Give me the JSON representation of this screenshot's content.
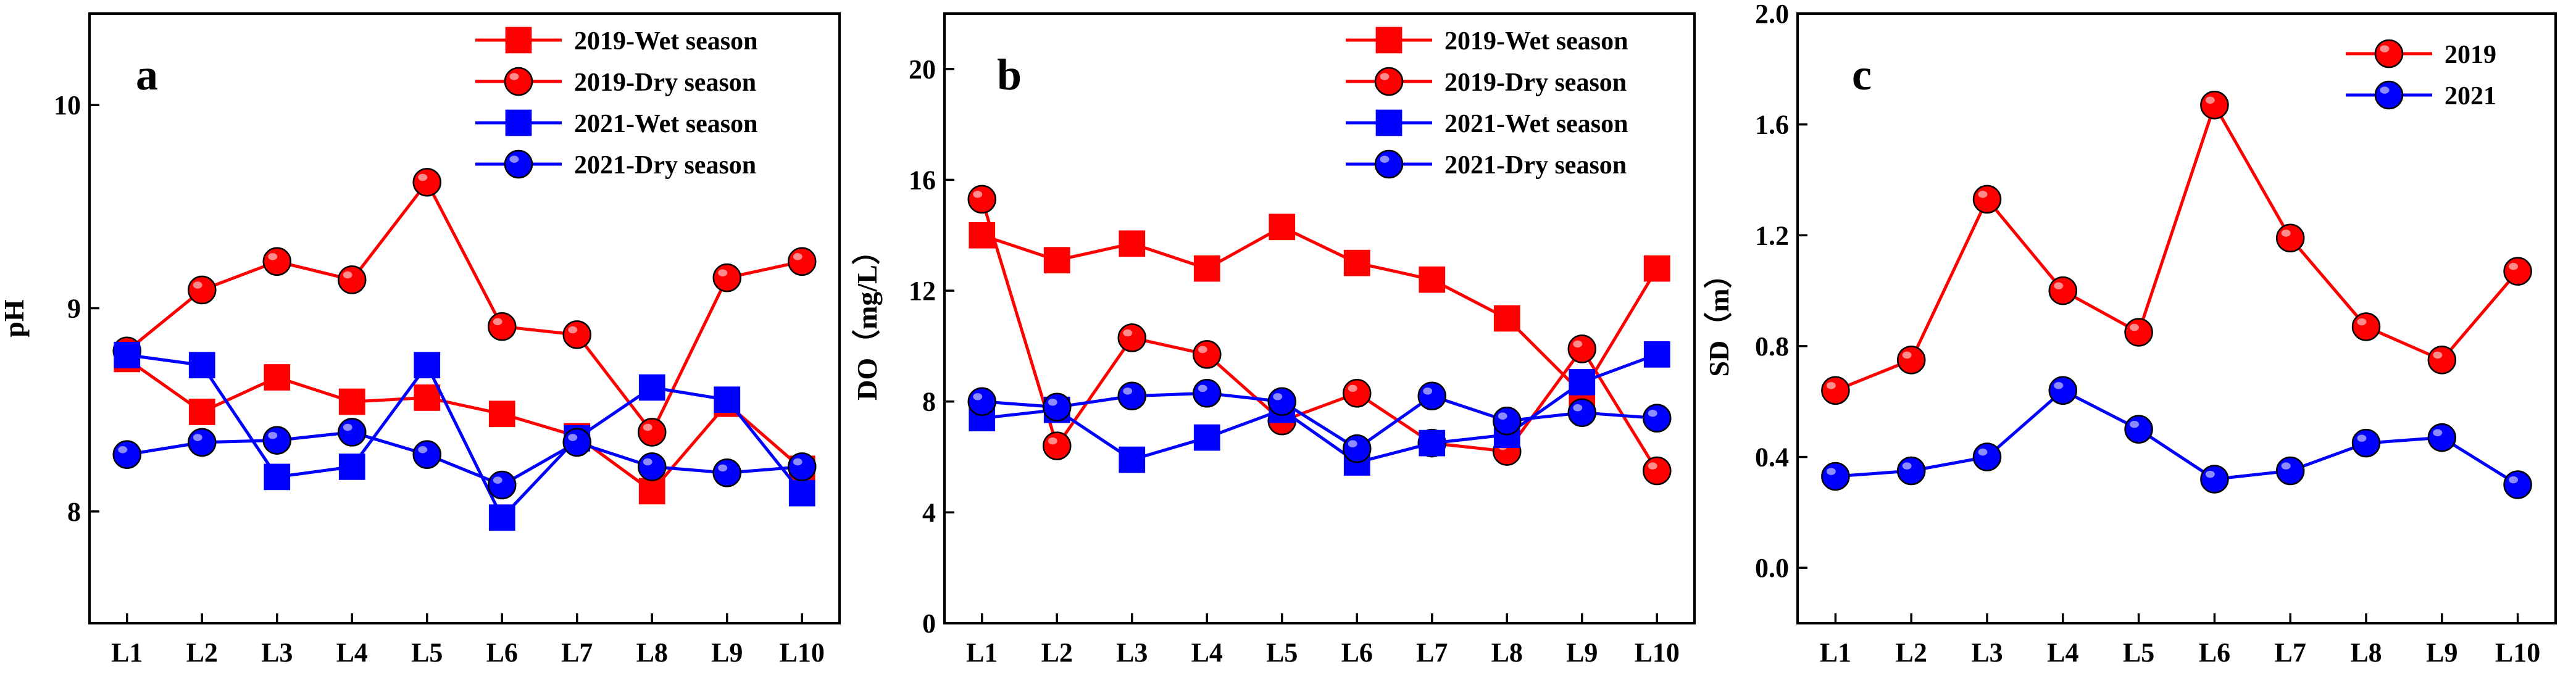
{
  "chart_data": [
    {
      "type": "line",
      "panel_label": "a",
      "title": "",
      "xlabel": "",
      "ylabel": "pH",
      "categories": [
        "L1",
        "L2",
        "L3",
        "L4",
        "L5",
        "L6",
        "L7",
        "L8",
        "L9",
        "L10"
      ],
      "ylim": [
        7.45,
        10.45
      ],
      "yticks": [
        8,
        9,
        10
      ],
      "yticklabels": [
        "8",
        "9",
        "10"
      ],
      "series": [
        {
          "name": "2019-Wet season",
          "color": "#ff0000",
          "marker": "square",
          "values": [
            8.75,
            8.49,
            8.66,
            8.54,
            8.56,
            8.48,
            8.37,
            8.1,
            8.53,
            8.21
          ]
        },
        {
          "name": "2019-Dry season",
          "color": "#ff0000",
          "marker": "circle",
          "values": [
            8.79,
            9.09,
            9.23,
            9.14,
            9.62,
            8.91,
            8.87,
            8.39,
            9.15,
            9.23
          ]
        },
        {
          "name": "2021-Wet season",
          "color": "#0000ff",
          "marker": "square",
          "values": [
            8.77,
            8.72,
            8.17,
            8.22,
            8.72,
            7.97,
            8.36,
            8.61,
            8.55,
            8.09
          ]
        },
        {
          "name": "2021-Dry season",
          "color": "#0000ff",
          "marker": "circle",
          "values": [
            8.28,
            8.34,
            8.35,
            8.39,
            8.28,
            8.13,
            8.34,
            8.22,
            8.19,
            8.22
          ]
        }
      ]
    },
    {
      "type": "line",
      "panel_label": "b",
      "title": "",
      "xlabel": "",
      "ylabel": "DO（mg/L）",
      "categories": [
        "L1",
        "L2",
        "L3",
        "L4",
        "L5",
        "L6",
        "L7",
        "L8",
        "L9",
        "L10"
      ],
      "ylim": [
        0,
        22
      ],
      "yticks": [
        0,
        4,
        8,
        12,
        16,
        20
      ],
      "yticklabels": [
        "0",
        "4",
        "8",
        "12",
        "16",
        "20"
      ],
      "series": [
        {
          "name": "2019-Wet season",
          "color": "#ff0000",
          "marker": "square",
          "values": [
            14.0,
            13.1,
            13.7,
            12.8,
            14.3,
            13.0,
            12.4,
            11.0,
            8.3,
            12.8
          ]
        },
        {
          "name": "2019-Dry season",
          "color": "#ff0000",
          "marker": "circle",
          "values": [
            15.3,
            6.4,
            10.3,
            9.7,
            7.3,
            8.3,
            6.5,
            6.2,
            9.9,
            5.5
          ]
        },
        {
          "name": "2021-Wet season",
          "color": "#0000ff",
          "marker": "square",
          "values": [
            7.4,
            7.7,
            5.9,
            6.7,
            7.7,
            5.8,
            6.5,
            6.8,
            8.7,
            9.7
          ]
        },
        {
          "name": "2021-Dry season",
          "color": "#0000ff",
          "marker": "circle",
          "values": [
            8.0,
            7.8,
            8.2,
            8.3,
            8.0,
            6.3,
            8.2,
            7.3,
            7.6,
            7.4
          ]
        }
      ]
    },
    {
      "type": "line",
      "panel_label": "c",
      "title": "",
      "xlabel": "",
      "ylabel": "SD（m）",
      "categories": [
        "L1",
        "L2",
        "L3",
        "L4",
        "L5",
        "L6",
        "L7",
        "L8",
        "L9",
        "L10"
      ],
      "ylim": [
        -0.2,
        2.0
      ],
      "yticks": [
        0.0,
        0.4,
        0.8,
        1.2,
        1.6,
        2.0
      ],
      "yticklabels": [
        "0.0",
        "0.4",
        "0.8",
        "1.2",
        "1.6",
        "2.0"
      ],
      "series": [
        {
          "name": "2019",
          "color": "#ff0000",
          "marker": "circle",
          "values": [
            0.64,
            0.75,
            1.33,
            1.0,
            0.85,
            1.67,
            1.19,
            0.87,
            0.75,
            1.07
          ]
        },
        {
          "name": "2021",
          "color": "#0000ff",
          "marker": "circle",
          "values": [
            0.33,
            0.35,
            0.4,
            0.64,
            0.5,
            0.32,
            0.35,
            0.45,
            0.47,
            0.3
          ]
        }
      ]
    }
  ]
}
